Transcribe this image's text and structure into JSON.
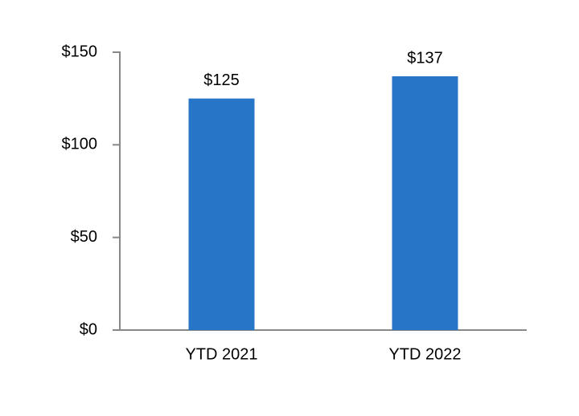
{
  "chart_data": {
    "type": "bar",
    "categories": [
      "YTD 2021",
      "YTD 2022"
    ],
    "values": [
      125,
      137
    ],
    "value_labels": [
      "$125",
      "$137"
    ],
    "color": "#2775c7",
    "ylim": [
      0,
      150
    ],
    "yticks": [
      {
        "value": 0,
        "label": "$0"
      },
      {
        "value": 50,
        "label": "$50"
      },
      {
        "value": 100,
        "label": "$100"
      },
      {
        "value": 150,
        "label": "$150"
      }
    ],
    "grid": false
  }
}
